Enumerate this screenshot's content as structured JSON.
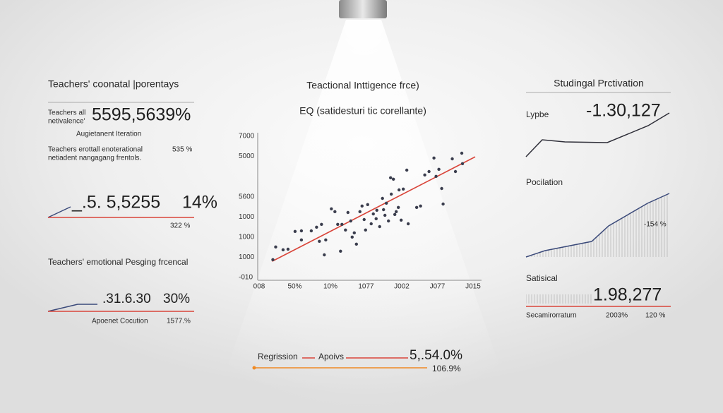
{
  "left_panel": {
    "title": "Teachers' coonatal |porentays",
    "kpi_label_lines": [
      "Teachers all",
      "netivalence'"
    ],
    "kpi_value": "5595,5639%",
    "subtitle": "Augietanent Iteration",
    "note_lines": [
      "Teachers erottall enoterational",
      "netiadent nangagang frentols."
    ],
    "note_value": "535 %",
    "metric2_value": "_.5. 5,5255",
    "metric2_percent": "14%",
    "metric2_sub": "322 %",
    "section_title": "Teachers' emotional Pesging frcencal",
    "metric3_value": ".31.6.30",
    "metric3_percent": "30%",
    "metric3_caption": "Apoenet Cocution",
    "metric3_caption_value": "1577.%"
  },
  "chart_data": {
    "type": "scatter",
    "title": "Teactional Inttigence frce)",
    "subtitle": "EQ (satidesturi tic corellante)",
    "color": "#3a3d4d",
    "x": [
      0.38,
      0.46,
      0.67,
      0.81,
      1.01,
      1.19,
      1.19,
      1.47,
      1.62,
      1.7,
      1.76,
      1.84,
      1.88,
      2.04,
      2.14,
      2.22,
      2.3,
      2.34,
      2.44,
      2.51,
      2.59,
      2.63,
      2.69,
      2.75,
      2.85,
      2.91,
      2.97,
      3.01,
      3.07,
      3.17,
      3.23,
      3.31,
      3.33,
      3.41,
      3.49,
      3.52,
      3.56,
      3.6,
      3.66,
      3.72,
      3.74,
      3.8,
      3.84,
      3.88,
      3.94,
      3.96,
      4.02,
      4.08,
      4.18,
      4.22,
      4.46,
      4.57,
      4.69,
      4.81,
      4.95,
      5.01,
      5.09,
      5.17,
      5.21,
      5.47,
      5.56,
      5.74,
      5.76
    ],
    "y": [
      0.88,
      1.51,
      1.37,
      1.4,
      2.28,
      2.31,
      1.86,
      2.31,
      2.49,
      1.79,
      2.63,
      1.12,
      1.86,
      3.4,
      3.26,
      2.63,
      1.3,
      2.63,
      2.35,
      3.22,
      2.8,
      2.0,
      2.21,
      1.65,
      3.26,
      3.54,
      2.87,
      2.35,
      3.61,
      2.66,
      3.15,
      2.91,
      3.33,
      2.52,
      3.92,
      3.36,
      3.08,
      3.68,
      2.8,
      4.94,
      4.13,
      4.87,
      3.12,
      3.26,
      3.47,
      4.34,
      2.84,
      4.38,
      5.32,
      2.66,
      3.47,
      3.54,
      5.08,
      5.25,
      5.92,
      5.01,
      5.36,
      4.41,
      3.64,
      5.88,
      5.25,
      6.16,
      5.64
    ],
    "xlim": [
      -0.05,
      6.3
    ],
    "ylim": [
      0,
      7
    ],
    "xtick_labels": [
      "008",
      "50%",
      "10%",
      "1077",
      "J002",
      "J077",
      "J015"
    ],
    "ytick_labels": [
      "-010",
      "1000",
      "1000",
      "1000",
      "5600",
      null,
      "5000",
      "7000"
    ],
    "regression": {
      "x": [
        0.36,
        6.12
      ],
      "y": [
        0.8,
        5.98
      ],
      "color": "#d9453a"
    }
  },
  "right_panel": {
    "title": "Studingal Prctivation",
    "kpi_label": "Lypbe",
    "kpi_value": "-1.30,127",
    "section2_title": "Pocilation",
    "section2_value": "-154 %",
    "section3_title": "Satisical",
    "section3_value": "1.98,277",
    "caption": "Secamirorraturn",
    "caption_value1": "2003%",
    "caption_value2": "120 %"
  },
  "footer": {
    "label1": "Regrission",
    "label2": "Apoivs",
    "value": "5,.54.0%",
    "sub_value": "106.9%"
  }
}
